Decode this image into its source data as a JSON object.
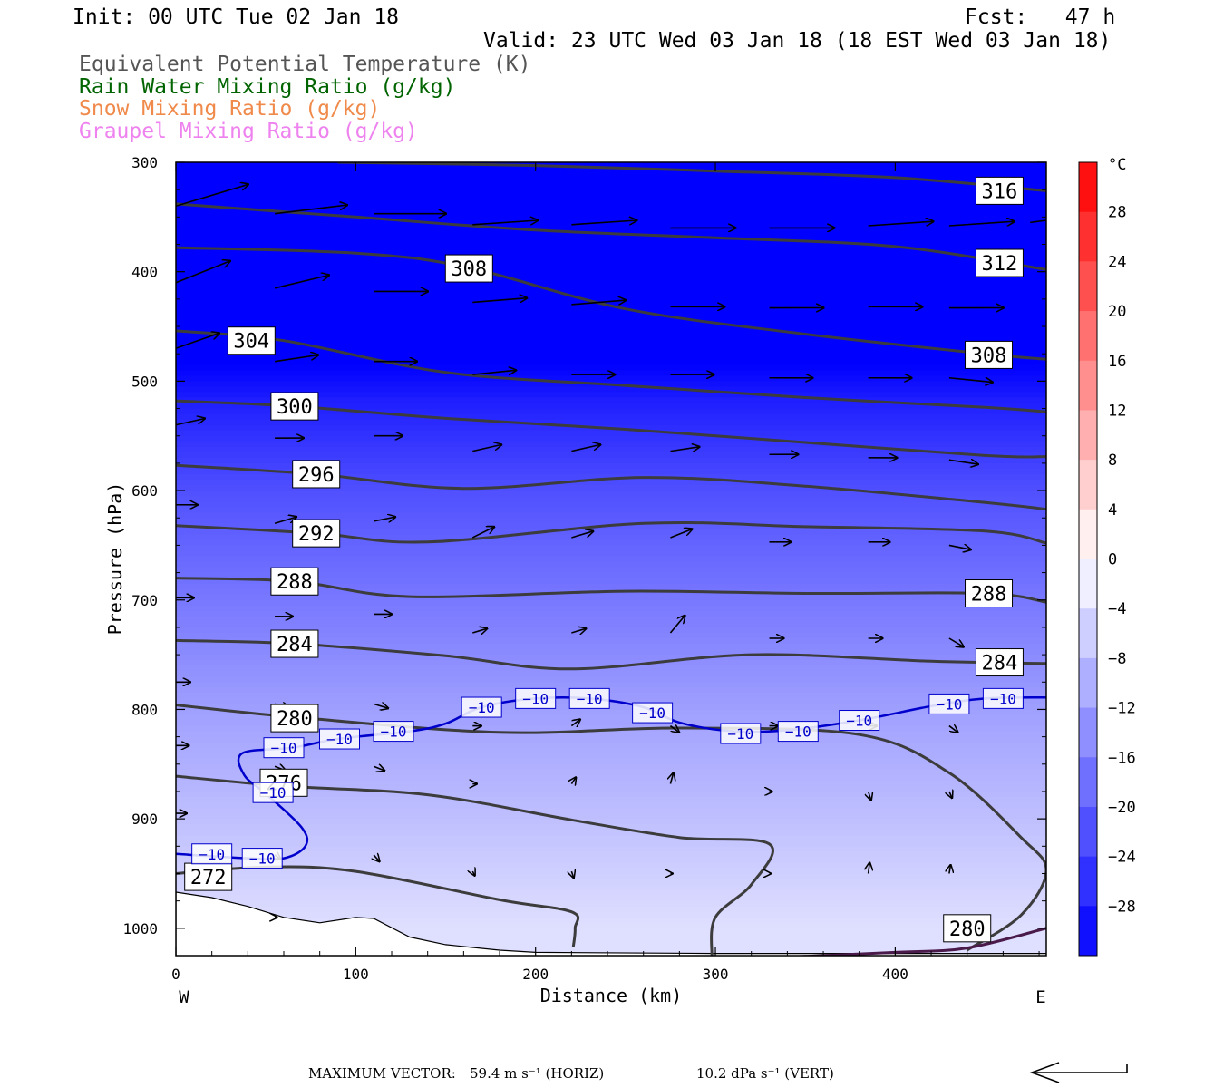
{
  "header": {
    "init": "Init: 00 UTC Tue 02 Jan 18",
    "fcst": "Fcst:   47 h",
    "valid": "Valid: 23 UTC Wed 03 Jan 18 (18 EST Wed 03 Jan 18)",
    "fields": [
      {
        "label": "Equivalent Potential Temperature (K)",
        "color": "#555555"
      },
      {
        "label": "Rain Water Mixing Ratio (g/kg)",
        "color": "#006400"
      },
      {
        "label": "Snow Mixing Ratio (g/kg)",
        "color": "#f08a4b"
      },
      {
        "label": "Graupel Mixing Ratio (g/kg)",
        "color": "#ee82ee"
      }
    ]
  },
  "chart_data": {
    "type": "cross-section",
    "xlabel": "Distance (km)",
    "ylabel": "Pressure (hPa)",
    "xlim": [
      0,
      484
    ],
    "ylim": [
      1025,
      300
    ],
    "x_ticks": [
      0,
      100,
      200,
      300,
      400
    ],
    "y_ticks": [
      300,
      400,
      500,
      600,
      700,
      800,
      900,
      1000
    ],
    "left_end": "W",
    "right_end": "E",
    "theta_e_contours": [
      {
        "value": 316,
        "points": [
          [
            90,
            300
          ],
          [
            200,
            303
          ],
          [
            300,
            308
          ],
          [
            400,
            314
          ],
          [
            484,
            326
          ]
        ],
        "labels": [
          [
            458,
            326
          ]
        ]
      },
      {
        "value": 312,
        "points": [
          [
            0,
            338
          ],
          [
            100,
            350
          ],
          [
            200,
            362
          ],
          [
            300,
            369
          ],
          [
            400,
            377
          ],
          [
            484,
            398
          ]
        ],
        "labels": [
          [
            458,
            392
          ]
        ]
      },
      {
        "value": 308,
        "points": [
          [
            0,
            378
          ],
          [
            100,
            383
          ],
          [
            162,
            396
          ],
          [
            250,
            434
          ],
          [
            350,
            457
          ],
          [
            450,
            475
          ],
          [
            484,
            480
          ]
        ],
        "labels": [
          [
            163,
            397
          ],
          [
            452,
            476
          ]
        ]
      },
      {
        "value": 304,
        "points": [
          [
            0,
            454
          ],
          [
            60,
            463
          ],
          [
            150,
            492
          ],
          [
            250,
            504
          ],
          [
            350,
            515
          ],
          [
            450,
            524
          ],
          [
            484,
            528
          ]
        ],
        "labels": [
          [
            42,
            463
          ]
        ]
      },
      {
        "value": 300,
        "points": [
          [
            0,
            518
          ],
          [
            66,
            523
          ],
          [
            150,
            534
          ],
          [
            250,
            544
          ],
          [
            350,
            556
          ],
          [
            450,
            568
          ],
          [
            484,
            569
          ]
        ],
        "labels": [
          [
            66,
            523
          ]
        ]
      },
      {
        "value": 296,
        "points": [
          [
            0,
            577
          ],
          [
            78,
            585
          ],
          [
            160,
            598
          ],
          [
            260,
            588
          ],
          [
            350,
            596
          ],
          [
            450,
            611
          ],
          [
            484,
            617
          ]
        ],
        "labels": [
          [
            78,
            585
          ]
        ]
      },
      {
        "value": 292,
        "points": [
          [
            0,
            632
          ],
          [
            78,
            639
          ],
          [
            140,
            647
          ],
          [
            260,
            630
          ],
          [
            350,
            633
          ],
          [
            450,
            637
          ],
          [
            484,
            648
          ]
        ],
        "labels": [
          [
            78,
            639
          ]
        ]
      },
      {
        "value": 288,
        "points": [
          [
            0,
            680
          ],
          [
            66,
            683
          ],
          [
            130,
            697
          ],
          [
            250,
            692
          ],
          [
            350,
            694
          ],
          [
            450,
            694
          ],
          [
            484,
            702
          ]
        ],
        "labels": [
          [
            66,
            683
          ],
          [
            452,
            694
          ]
        ]
      },
      {
        "value": 284,
        "points": [
          [
            0,
            737
          ],
          [
            66,
            740
          ],
          [
            150,
            751
          ],
          [
            220,
            763
          ],
          [
            320,
            750
          ],
          [
            420,
            756
          ],
          [
            484,
            758
          ]
        ],
        "labels": [
          [
            66,
            740
          ],
          [
            458,
            757
          ]
        ]
      },
      {
        "value": 280,
        "points": [
          [
            0,
            796
          ],
          [
            66,
            807
          ],
          [
            180,
            821
          ],
          [
            280,
            817
          ],
          [
            380,
            823
          ],
          [
            430,
            858
          ],
          [
            470,
            917
          ],
          [
            484,
            947
          ],
          [
            470,
            988
          ],
          [
            440,
            1020
          ]
        ],
        "labels": [
          [
            66,
            808
          ]
        ]
      },
      {
        "value": 276,
        "points": [
          [
            0,
            861
          ],
          [
            60,
            870
          ],
          [
            140,
            878
          ],
          [
            220,
            901
          ],
          [
            280,
            917
          ],
          [
            330,
            923
          ],
          [
            320,
            960
          ],
          [
            300,
            990
          ],
          [
            298,
            1025
          ]
        ],
        "labels": [
          [
            60,
            867
          ]
        ]
      },
      {
        "value": 272,
        "points": [
          [
            0,
            950
          ],
          [
            50,
            944
          ],
          [
            100,
            948
          ],
          [
            180,
            974
          ],
          [
            220,
            985
          ],
          [
            222,
            1000
          ],
          [
            221,
            1017
          ]
        ],
        "labels": [
          [
            18,
            953
          ]
        ]
      },
      {
        "value": 280,
        "points": [
          [
            330,
            1027
          ],
          [
            400,
            1022
          ],
          [
            440,
            1018
          ],
          [
            484,
            1000
          ]
        ],
        "labels": [
          [
            440,
            1000
          ]
        ]
      }
    ],
    "temperature_contour_minus10": {
      "value": -10,
      "points": [
        [
          0,
          932
        ],
        [
          40,
          936
        ],
        [
          60,
          936
        ],
        [
          72,
          925
        ],
        [
          70,
          908
        ],
        [
          50,
          877
        ],
        [
          38,
          860
        ],
        [
          37,
          840
        ],
        [
          65,
          835
        ],
        [
          90,
          827
        ],
        [
          130,
          820
        ],
        [
          150,
          813
        ],
        [
          170,
          798
        ],
        [
          200,
          790
        ],
        [
          230,
          790
        ],
        [
          260,
          798
        ],
        [
          280,
          812
        ],
        [
          310,
          820
        ],
        [
          340,
          819
        ],
        [
          380,
          810
        ],
        [
          420,
          797
        ],
        [
          450,
          790
        ],
        [
          484,
          789
        ]
      ],
      "labels": [
        [
          20,
          932
        ],
        [
          48,
          936
        ],
        [
          54,
          876
        ],
        [
          60,
          835
        ],
        [
          91,
          827
        ],
        [
          121,
          820
        ],
        [
          170,
          798
        ],
        [
          200,
          790
        ],
        [
          230,
          790
        ],
        [
          265,
          803
        ],
        [
          314,
          822
        ],
        [
          346,
          820
        ],
        [
          380,
          810
        ],
        [
          430,
          795
        ],
        [
          460,
          790
        ]
      ]
    },
    "temperature_colorbar": {
      "unit": "°C",
      "ticks": [
        28,
        24,
        20,
        16,
        12,
        8,
        4,
        0,
        -4,
        -8,
        -12,
        -16,
        -20,
        -24,
        -28
      ],
      "min": -32,
      "max": 32
    },
    "temperature_field": [
      {
        "p": 300,
        "temp": -50
      },
      {
        "p": 450,
        "temp": -36
      },
      {
        "p": 520,
        "temp": -28
      },
      {
        "p": 600,
        "temp": -22
      },
      {
        "p": 700,
        "temp": -17
      },
      {
        "p": 800,
        "temp": -12
      },
      {
        "p": 900,
        "temp": -8
      },
      {
        "p": 1000,
        "temp": -4
      }
    ],
    "wind_vectors": [
      {
        "x": 0,
        "p": 340,
        "u": 1.0,
        "w": 0.1
      },
      {
        "x": 55,
        "p": 347,
        "u": 1.0,
        "w": 0.04
      },
      {
        "x": 110,
        "p": 347,
        "u": 1.0,
        "w": 0.0
      },
      {
        "x": 165,
        "p": 357,
        "u": 0.9,
        "w": 0.02
      },
      {
        "x": 220,
        "p": 357,
        "u": 0.9,
        "w": 0.02
      },
      {
        "x": 275,
        "p": 360,
        "u": 0.9,
        "w": 0.0
      },
      {
        "x": 330,
        "p": 360,
        "u": 0.9,
        "w": 0.0
      },
      {
        "x": 385,
        "p": 358,
        "u": 0.9,
        "w": 0.02
      },
      {
        "x": 430,
        "p": 358,
        "u": 0.9,
        "w": 0.02
      },
      {
        "x": 475,
        "p": 355,
        "u": 0.9,
        "w": 0.04
      },
      {
        "x": 0,
        "p": 410,
        "u": 0.75,
        "w": 0.1
      },
      {
        "x": 55,
        "p": 415,
        "u": 0.75,
        "w": 0.06
      },
      {
        "x": 110,
        "p": 418,
        "u": 0.75,
        "w": 0.0
      },
      {
        "x": 165,
        "p": 428,
        "u": 0.75,
        "w": 0.02
      },
      {
        "x": 220,
        "p": 430,
        "u": 0.75,
        "w": 0.02
      },
      {
        "x": 275,
        "p": 432,
        "u": 0.75,
        "w": 0.0
      },
      {
        "x": 330,
        "p": 433,
        "u": 0.75,
        "w": 0.0
      },
      {
        "x": 385,
        "p": 432,
        "u": 0.75,
        "w": 0.0
      },
      {
        "x": 430,
        "p": 433,
        "u": 0.75,
        "w": 0.0
      },
      {
        "x": 0,
        "p": 470,
        "u": 0.6,
        "w": 0.07
      },
      {
        "x": 55,
        "p": 482,
        "u": 0.6,
        "w": 0.03
      },
      {
        "x": 110,
        "p": 482,
        "u": 0.6,
        "w": 0.0
      },
      {
        "x": 165,
        "p": 494,
        "u": 0.6,
        "w": 0.02
      },
      {
        "x": 220,
        "p": 494,
        "u": 0.6,
        "w": 0.0
      },
      {
        "x": 275,
        "p": 494,
        "u": 0.6,
        "w": 0.0
      },
      {
        "x": 330,
        "p": 497,
        "u": 0.6,
        "w": 0.0
      },
      {
        "x": 385,
        "p": 497,
        "u": 0.6,
        "w": 0.0
      },
      {
        "x": 430,
        "p": 497,
        "u": 0.6,
        "w": -0.02
      },
      {
        "x": 0,
        "p": 540,
        "u": 0.4,
        "w": 0.03
      },
      {
        "x": 55,
        "p": 552,
        "u": 0.4,
        "w": 0.0
      },
      {
        "x": 110,
        "p": 550,
        "u": 0.4,
        "w": 0.0
      },
      {
        "x": 165,
        "p": 564,
        "u": 0.4,
        "w": 0.03
      },
      {
        "x": 220,
        "p": 564,
        "u": 0.4,
        "w": 0.03
      },
      {
        "x": 275,
        "p": 564,
        "u": 0.4,
        "w": 0.02
      },
      {
        "x": 330,
        "p": 567,
        "u": 0.4,
        "w": 0.0
      },
      {
        "x": 385,
        "p": 570,
        "u": 0.4,
        "w": 0.0
      },
      {
        "x": 430,
        "p": 572,
        "u": 0.4,
        "w": -0.02
      },
      {
        "x": 0,
        "p": 613,
        "u": 0.3,
        "w": 0.0
      },
      {
        "x": 55,
        "p": 630,
        "u": 0.3,
        "w": 0.03
      },
      {
        "x": 110,
        "p": 628,
        "u": 0.3,
        "w": 0.02
      },
      {
        "x": 165,
        "p": 643,
        "u": 0.3,
        "w": 0.05
      },
      {
        "x": 220,
        "p": 643,
        "u": 0.3,
        "w": 0.03
      },
      {
        "x": 275,
        "p": 643,
        "u": 0.3,
        "w": 0.04
      },
      {
        "x": 330,
        "p": 647,
        "u": 0.3,
        "w": 0.0
      },
      {
        "x": 385,
        "p": 647,
        "u": 0.3,
        "w": 0.0
      },
      {
        "x": 430,
        "p": 650,
        "u": 0.3,
        "w": -0.02
      },
      {
        "x": 0,
        "p": 698,
        "u": 0.25,
        "w": 0.0
      },
      {
        "x": 55,
        "p": 715,
        "u": 0.25,
        "w": 0.0
      },
      {
        "x": 110,
        "p": 713,
        "u": 0.25,
        "w": 0.0
      },
      {
        "x": 165,
        "p": 730,
        "u": 0.2,
        "w": 0.02
      },
      {
        "x": 220,
        "p": 730,
        "u": 0.2,
        "w": 0.02
      },
      {
        "x": 275,
        "p": 730,
        "u": 0.2,
        "w": 0.08
      },
      {
        "x": 330,
        "p": 735,
        "u": 0.2,
        "w": 0.0
      },
      {
        "x": 385,
        "p": 735,
        "u": 0.2,
        "w": 0.0
      },
      {
        "x": 430,
        "p": 735,
        "u": 0.2,
        "w": -0.04
      },
      {
        "x": 0,
        "p": 775,
        "u": 0.2,
        "w": 0.0
      },
      {
        "x": 55,
        "p": 795,
        "u": 0.2,
        "w": -0.02
      },
      {
        "x": 110,
        "p": 795,
        "u": 0.2,
        "w": -0.02
      },
      {
        "x": 165,
        "p": 815,
        "u": 0.12,
        "w": 0.0
      },
      {
        "x": 220,
        "p": 815,
        "u": 0.12,
        "w": 0.03
      },
      {
        "x": 275,
        "p": 815,
        "u": 0.12,
        "w": -0.03
      },
      {
        "x": 330,
        "p": 815,
        "u": 0.12,
        "w": 0.0
      },
      {
        "x": 385,
        "p": 815,
        "u": 0.12,
        "w": 0.0
      },
      {
        "x": 430,
        "p": 815,
        "u": 0.12,
        "w": -0.03
      },
      {
        "x": 0,
        "p": 833,
        "u": 0.18,
        "w": 0.0
      },
      {
        "x": 55,
        "p": 852,
        "u": 0.15,
        "w": -0.02
      },
      {
        "x": 110,
        "p": 852,
        "u": 0.15,
        "w": -0.02
      },
      {
        "x": 165,
        "p": 868,
        "u": 0.06,
        "w": 0.0
      },
      {
        "x": 220,
        "p": 868,
        "u": 0.06,
        "w": 0.03
      },
      {
        "x": 275,
        "p": 868,
        "u": 0.04,
        "w": 0.05
      },
      {
        "x": 330,
        "p": 875,
        "u": 0.04,
        "w": 0.0
      },
      {
        "x": 385,
        "p": 875,
        "u": 0.04,
        "w": -0.04
      },
      {
        "x": 430,
        "p": 875,
        "u": 0.04,
        "w": -0.03
      },
      {
        "x": 0,
        "p": 895,
        "u": 0.15,
        "w": 0.0
      },
      {
        "x": 55,
        "p": 933,
        "u": 0.08,
        "w": -0.02
      },
      {
        "x": 110,
        "p": 933,
        "u": 0.08,
        "w": -0.03
      },
      {
        "x": 165,
        "p": 948,
        "u": 0.03,
        "w": -0.02
      },
      {
        "x": 220,
        "p": 948,
        "u": 0.03,
        "w": -0.03
      },
      {
        "x": 275,
        "p": 950,
        "u": 0.03,
        "w": 0.0
      },
      {
        "x": 330,
        "p": 950,
        "u": 0.02,
        "w": 0.0
      },
      {
        "x": 385,
        "p": 950,
        "u": 0.02,
        "w": 0.05
      },
      {
        "x": 430,
        "p": 950,
        "u": 0.02,
        "w": 0.04
      },
      {
        "x": 55,
        "p": 990,
        "u": 0.03,
        "w": 0.0
      }
    ],
    "terrain_pressure": [
      [
        0,
        967
      ],
      [
        20,
        972
      ],
      [
        40,
        980
      ],
      [
        60,
        990
      ],
      [
        80,
        995
      ],
      [
        100,
        990
      ],
      [
        110,
        991
      ],
      [
        130,
        1008
      ],
      [
        150,
        1015
      ],
      [
        180,
        1020
      ],
      [
        200,
        1022
      ],
      [
        300,
        1023
      ],
      [
        400,
        1023
      ],
      [
        484,
        1023
      ]
    ],
    "footer": {
      "max_vector_label": "MAXIMUM VECTOR:",
      "horiz": "59.4 m s⁻¹ (HORIZ)",
      "vert": "10.2 dPa s⁻¹ (VERT)"
    }
  }
}
